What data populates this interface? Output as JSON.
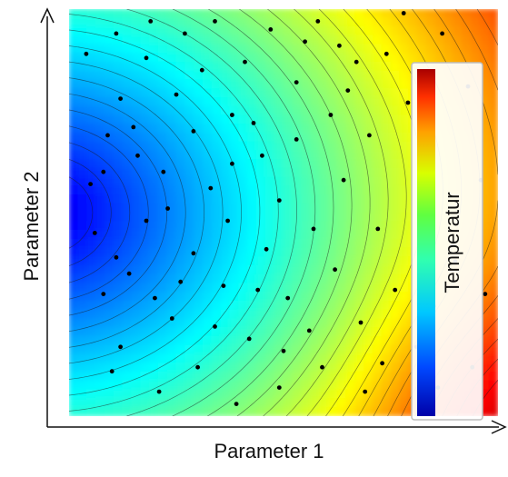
{
  "chart_data": {
    "type": "heatmap",
    "subtype": "contour-scatter",
    "title": "",
    "xlabel": "Parameter 1",
    "ylabel": "Parameter 2",
    "xlim": [
      0,
      1
    ],
    "ylim": [
      0,
      1
    ],
    "grid": false,
    "colorbar": {
      "label": "Temperatur",
      "colormap": "jet",
      "placement": "right-inside"
    },
    "field": {
      "description": "smooth scalar field, minimum near left-center, maximum at bottom-right corner",
      "min_location": [
        0.02,
        0.5
      ],
      "max_location": [
        1.0,
        0.0
      ],
      "contour_levels": 30
    },
    "points": [
      [
        0.18,
        0.88
      ],
      [
        0.25,
        0.79
      ],
      [
        0.11,
        0.94
      ],
      [
        0.34,
        0.97
      ],
      [
        0.09,
        0.69
      ],
      [
        0.27,
        0.94
      ],
      [
        0.47,
        0.95
      ],
      [
        0.19,
        0.97
      ],
      [
        0.55,
        0.92
      ],
      [
        0.12,
        0.78
      ],
      [
        0.78,
        0.99
      ],
      [
        0.63,
        0.91
      ],
      [
        0.67,
        0.87
      ],
      [
        0.16,
        0.64
      ],
      [
        0.29,
        0.7
      ],
      [
        0.06,
        0.45
      ],
      [
        0.41,
        0.87
      ],
      [
        0.38,
        0.74
      ],
      [
        0.22,
        0.6
      ],
      [
        0.53,
        0.82
      ],
      [
        0.04,
        0.89
      ],
      [
        0.61,
        0.74
      ],
      [
        0.33,
        0.56
      ],
      [
        0.45,
        0.64
      ],
      [
        0.29,
        0.4
      ],
      [
        0.18,
        0.48
      ],
      [
        0.08,
        0.3
      ],
      [
        0.36,
        0.32
      ],
      [
        0.24,
        0.24
      ],
      [
        0.12,
        0.17
      ],
      [
        0.42,
        0.19
      ],
      [
        0.3,
        0.12
      ],
      [
        0.51,
        0.29
      ],
      [
        0.57,
        0.46
      ],
      [
        0.49,
        0.53
      ],
      [
        0.64,
        0.58
      ],
      [
        0.7,
        0.69
      ],
      [
        0.72,
        0.46
      ],
      [
        0.76,
        0.31
      ],
      [
        0.68,
        0.23
      ],
      [
        0.59,
        0.12
      ],
      [
        0.49,
        0.07
      ],
      [
        0.39,
        0.03
      ],
      [
        0.21,
        0.06
      ],
      [
        0.14,
        0.35
      ],
      [
        0.05,
        0.57
      ],
      [
        0.1,
        0.11
      ],
      [
        0.81,
        0.17
      ],
      [
        0.86,
        0.07
      ],
      [
        0.94,
        0.12
      ],
      [
        0.97,
        0.3
      ],
      [
        0.9,
        0.38
      ],
      [
        0.83,
        0.54
      ],
      [
        0.79,
        0.77
      ],
      [
        0.74,
        0.89
      ],
      [
        0.87,
        0.94
      ],
      [
        0.93,
        0.81
      ],
      [
        0.96,
        0.58
      ],
      [
        0.46,
        0.41
      ],
      [
        0.53,
        0.68
      ],
      [
        0.26,
        0.33
      ],
      [
        0.15,
        0.71
      ],
      [
        0.37,
        0.48
      ],
      [
        0.62,
        0.36
      ],
      [
        0.69,
        0.06
      ],
      [
        0.56,
        0.21
      ],
      [
        0.43,
        0.72
      ],
      [
        0.31,
        0.85
      ],
      [
        0.08,
        0.6
      ],
      [
        0.2,
        0.29
      ],
      [
        0.34,
        0.22
      ],
      [
        0.73,
        0.13
      ],
      [
        0.85,
        0.27
      ],
      [
        0.65,
        0.8
      ],
      [
        0.58,
        0.97
      ],
      [
        0.44,
        0.31
      ],
      [
        0.23,
        0.51
      ],
      [
        0.11,
        0.39
      ],
      [
        0.38,
        0.62
      ],
      [
        0.5,
        0.16
      ]
    ]
  }
}
